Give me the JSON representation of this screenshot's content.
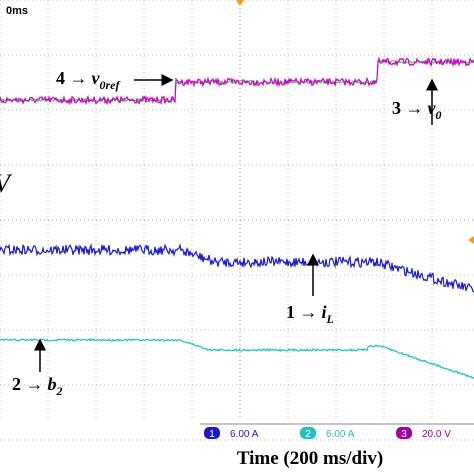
{
  "screen": {
    "time_label": "0ms",
    "side_label": "V"
  },
  "annotations": [
    {
      "prefix": "4 →",
      "var": "v",
      "sub": "0ref"
    },
    {
      "prefix": "3 →",
      "var": "v",
      "sub": "0"
    },
    {
      "prefix": "1 →",
      "var": "i",
      "sub": "L"
    },
    {
      "prefix": "2 →",
      "var": "b",
      "sub": "2"
    }
  ],
  "legend": [
    {
      "id": "1",
      "scale": "6.00 A"
    },
    {
      "id": "2",
      "scale": "6.00 A"
    },
    {
      "id": "3",
      "scale": "20.0 V"
    }
  ],
  "caption": "Time (200 ms/div)"
}
